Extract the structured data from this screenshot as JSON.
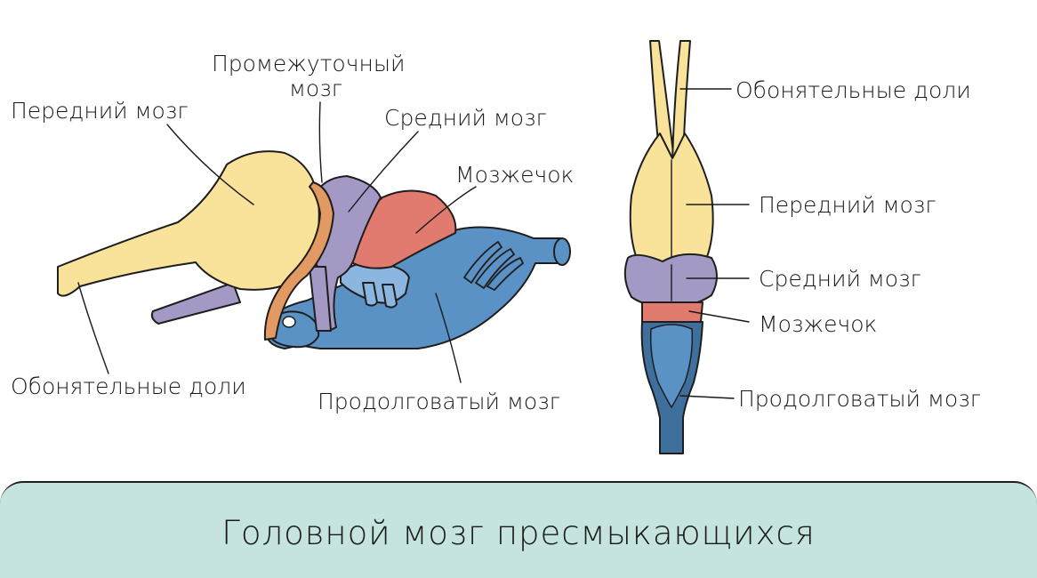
{
  "colors": {
    "forebrain": "#f9e29a",
    "diencephalon": "#e39a62",
    "midbrain": "#a499c4",
    "cerebellum": "#e17a6f",
    "medulla": "#5b92c6",
    "medulla_dark": "#3f6f9c",
    "footer_bg": "#c5e4e0"
  },
  "side_view": {
    "forebrain": "Передний мозг",
    "diencephalon_line1": "Промежуточный",
    "diencephalon_line2": "мозг",
    "midbrain": "Средний мозг",
    "cerebellum": "Мозжечок",
    "olfactory": "Обонятельные доли",
    "medulla": "Продолговатый мозг"
  },
  "top_view": {
    "olfactory": "Обонятельные доли",
    "forebrain": "Передний мозг",
    "midbrain": "Средний мозг",
    "cerebellum": "Мозжечок",
    "medulla": "Продолговатый мозг"
  },
  "footer": {
    "title": "Головной мозг пресмыкающихся"
  }
}
